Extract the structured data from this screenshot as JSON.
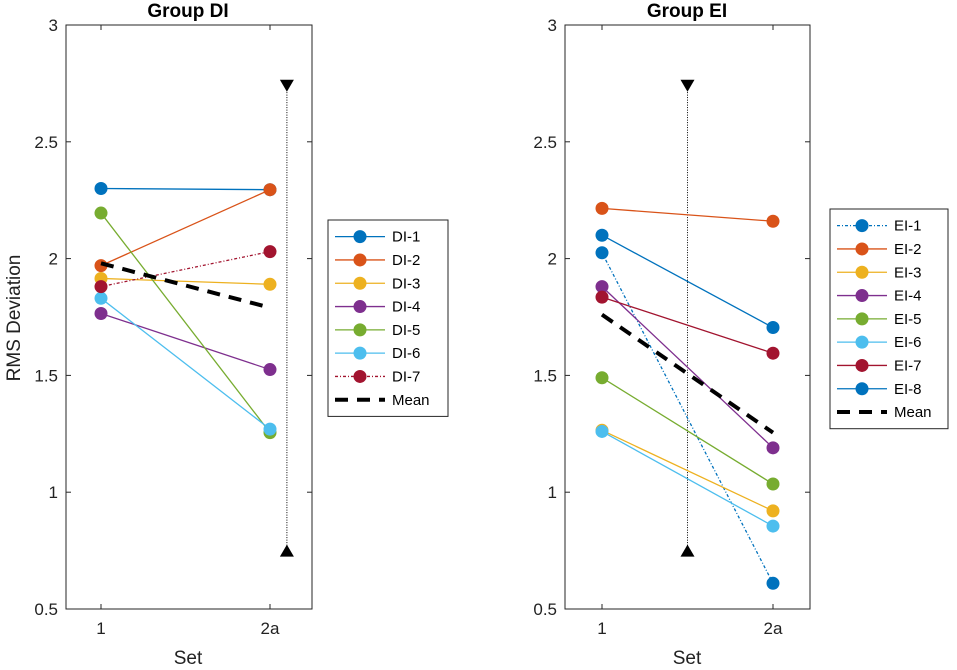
{
  "figure": {
    "ylabel": "RMS Deviation",
    "xlabel": "Set",
    "categories": [
      "1",
      "2a"
    ],
    "yticks": [
      "0.5",
      "1",
      "1.5",
      "2",
      "2.5",
      "3"
    ],
    "mean_label": "Mean"
  },
  "chart_data": [
    {
      "type": "line",
      "title": "Group DI",
      "xlabel": "Set",
      "ylabel": "RMS Deviation",
      "categories": [
        "1",
        "2a"
      ],
      "ylim": [
        0.5,
        3
      ],
      "legend_position": "right-outside",
      "series": [
        {
          "name": "DI-1",
          "values": [
            2.3,
            2.295
          ],
          "color": "#0072BD",
          "dash": "solid"
        },
        {
          "name": "DI-2",
          "values": [
            1.97,
            2.295
          ],
          "color": "#D95319",
          "dash": "solid"
        },
        {
          "name": "DI-3",
          "values": [
            1.915,
            1.89
          ],
          "color": "#EDB120",
          "dash": "solid"
        },
        {
          "name": "DI-4",
          "values": [
            1.765,
            1.525
          ],
          "color": "#7E2F8E",
          "dash": "solid"
        },
        {
          "name": "DI-5",
          "values": [
            2.195,
            1.255
          ],
          "color": "#77AC30",
          "dash": "solid"
        },
        {
          "name": "DI-6",
          "values": [
            1.83,
            1.27
          ],
          "color": "#4DBEEE",
          "dash": "solid"
        },
        {
          "name": "DI-7",
          "values": [
            1.88,
            2.03
          ],
          "color": "#A2142F",
          "dash": "dashdot"
        }
      ],
      "mean": {
        "name": "Mean",
        "values": [
          1.98,
          1.79
        ]
      },
      "range_bar": {
        "category_position": 2.1,
        "low": 0.75,
        "high": 2.74
      }
    },
    {
      "type": "line",
      "title": "Group EI",
      "xlabel": "Set",
      "ylabel": "",
      "categories": [
        "1",
        "2a"
      ],
      "ylim": [
        0.5,
        3
      ],
      "legend_position": "right-outside",
      "series": [
        {
          "name": "EI-1",
          "values": [
            2.025,
            0.61
          ],
          "color": "#0072BD",
          "dash": "dashdot"
        },
        {
          "name": "EI-2",
          "values": [
            2.215,
            2.16
          ],
          "color": "#D95319",
          "dash": "solid"
        },
        {
          "name": "EI-3",
          "values": [
            1.265,
            0.92
          ],
          "color": "#EDB120",
          "dash": "solid"
        },
        {
          "name": "EI-4",
          "values": [
            1.88,
            1.19
          ],
          "color": "#7E2F8E",
          "dash": "solid"
        },
        {
          "name": "EI-5",
          "values": [
            1.49,
            1.035
          ],
          "color": "#77AC30",
          "dash": "solid"
        },
        {
          "name": "EI-6",
          "values": [
            1.26,
            0.855
          ],
          "color": "#4DBEEE",
          "dash": "solid"
        },
        {
          "name": "EI-7",
          "values": [
            1.835,
            1.595
          ],
          "color": "#A2142F",
          "dash": "solid"
        },
        {
          "name": "EI-8",
          "values": [
            2.1,
            1.705
          ],
          "color": "#0072BD",
          "dash": "solid"
        }
      ],
      "mean": {
        "name": "Mean",
        "values": [
          1.76,
          1.255
        ]
      },
      "range_bar": {
        "category_position": 1.5,
        "low": 0.75,
        "high": 2.74
      }
    }
  ]
}
